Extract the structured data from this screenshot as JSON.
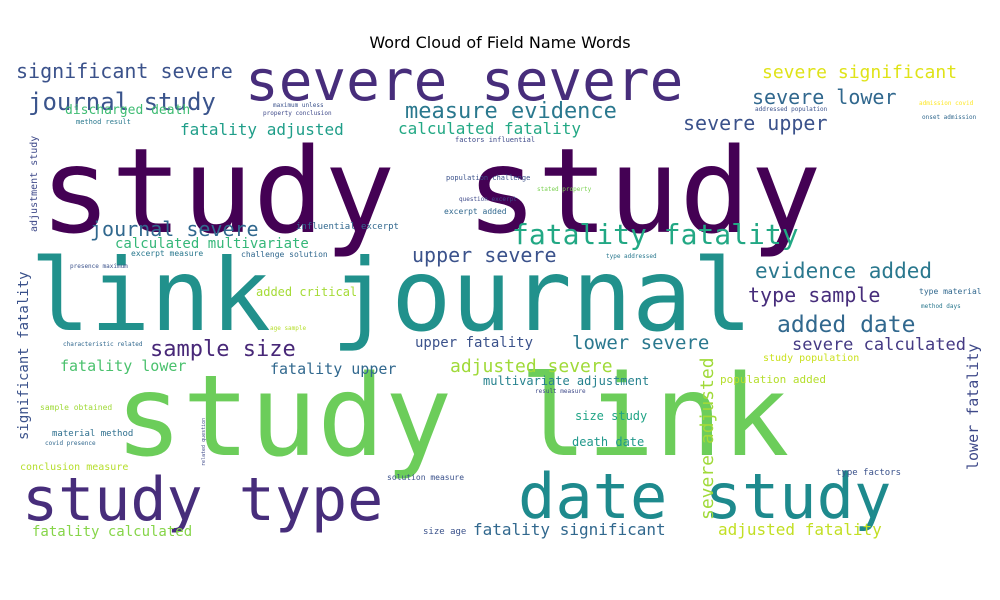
{
  "chart_data": {
    "type": "wordcloud",
    "title": "Word Cloud of Field Name Words",
    "background": "#ffffff",
    "colormap": "viridis",
    "words": [
      {
        "text": "study study",
        "weight": 1.0,
        "color": "#440154"
      },
      {
        "text": "study link",
        "weight": 0.93,
        "color": "#6ccd5a"
      },
      {
        "text": "link journal",
        "weight": 0.86,
        "color": "#21918c"
      },
      {
        "text": "severe severe",
        "weight": 0.55,
        "color": "#472d7b"
      },
      {
        "text": "study type",
        "weight": 0.55,
        "color": "#472d7b"
      },
      {
        "text": "date study",
        "weight": 0.55,
        "color": "#1e8a8d"
      },
      {
        "text": "journal study",
        "weight": 0.3,
        "color": "#3a548c"
      },
      {
        "text": "fatality fatality",
        "weight": 0.32,
        "color": "#22a884"
      },
      {
        "text": "significant severe",
        "weight": 0.25,
        "color": "#3b528b"
      },
      {
        "text": "severe significant",
        "weight": 0.24,
        "color": "#dfe318"
      },
      {
        "text": "measure evidence",
        "weight": 0.26,
        "color": "#2a788e"
      },
      {
        "text": "severe lower",
        "weight": 0.24,
        "color": "#31688e"
      },
      {
        "text": "severe upper",
        "weight": 0.24,
        "color": "#3b528b"
      },
      {
        "text": "journal severe",
        "weight": 0.26,
        "color": "#31688e"
      },
      {
        "text": "evidence added",
        "weight": 0.25,
        "color": "#2a788e"
      },
      {
        "text": "upper severe",
        "weight": 0.23,
        "color": "#3b528b"
      },
      {
        "text": "type sample",
        "weight": 0.24,
        "color": "#472d7b"
      },
      {
        "text": "added date",
        "weight": 0.26,
        "color": "#31688e"
      },
      {
        "text": "sample size",
        "weight": 0.24,
        "color": "#482878"
      },
      {
        "text": "severe calculated",
        "weight": 0.21,
        "color": "#443983"
      },
      {
        "text": "lower severe",
        "weight": 0.22,
        "color": "#2a788e"
      },
      {
        "text": "adjusted severe",
        "weight": 0.2,
        "color": "#a0da39"
      },
      {
        "text": "fatality adjusted",
        "weight": 0.18,
        "color": "#1f9e89"
      },
      {
        "text": "calculated fatality",
        "weight": 0.18,
        "color": "#22a884"
      },
      {
        "text": "calculated multivariate",
        "weight": 0.15,
        "color": "#35b779"
      },
      {
        "text": "discharged death",
        "weight": 0.14,
        "color": "#3fbc73"
      },
      {
        "text": "fatality lower",
        "weight": 0.16,
        "color": "#4ac16d"
      },
      {
        "text": "fatality upper",
        "weight": 0.16,
        "color": "#31688e"
      },
      {
        "text": "upper fatality",
        "weight": 0.15,
        "color": "#3b528b"
      },
      {
        "text": "multivariate adjustment",
        "weight": 0.13,
        "color": "#26828e"
      },
      {
        "text": "population added",
        "weight": 0.13,
        "color": "#b5de2b"
      },
      {
        "text": "study population",
        "weight": 0.12,
        "color": "#cae11f"
      },
      {
        "text": "severe adjusted",
        "weight": 0.2,
        "color": "#a0da39"
      },
      {
        "text": "lower fatality",
        "weight": 0.17,
        "color": "#3e4989"
      },
      {
        "text": "significant fatality",
        "weight": 0.16,
        "color": "#3b528b"
      },
      {
        "text": "adjustment study",
        "weight": 0.12,
        "color": "#3e4989"
      },
      {
        "text": "fatality significant",
        "weight": 0.18,
        "color": "#31688e"
      },
      {
        "text": "adjusted fatality",
        "weight": 0.18,
        "color": "#c2df23"
      },
      {
        "text": "fatality calculated",
        "weight": 0.15,
        "color": "#86d549"
      },
      {
        "text": "added critical",
        "weight": 0.12,
        "color": "#a5db36"
      },
      {
        "text": "size study",
        "weight": 0.12,
        "color": "#20a486"
      },
      {
        "text": "death date",
        "weight": 0.12,
        "color": "#1f988b"
      },
      {
        "text": "type material",
        "weight": 0.08,
        "color": "#31688e"
      },
      {
        "text": "conclusion measure",
        "weight": 0.09,
        "color": "#b5de2b"
      },
      {
        "text": "material method",
        "weight": 0.09,
        "color": "#2e6f8e"
      },
      {
        "text": "sample obtained",
        "weight": 0.08,
        "color": "#a0da39"
      },
      {
        "text": "type factors",
        "weight": 0.08,
        "color": "#3b528b"
      },
      {
        "text": "solution measure",
        "weight": 0.08,
        "color": "#3b528b"
      },
      {
        "text": "size age",
        "weight": 0.08,
        "color": "#3b528b"
      },
      {
        "text": "method result",
        "weight": 0.07,
        "color": "#2a788e"
      },
      {
        "text": "factors influential",
        "weight": 0.07,
        "color": "#3e4989"
      },
      {
        "text": "population challenge",
        "weight": 0.07,
        "color": "#3b528b"
      },
      {
        "text": "influential excerpt",
        "weight": 0.08,
        "color": "#31688e"
      },
      {
        "text": "challenge solution",
        "weight": 0.07,
        "color": "#31688e"
      },
      {
        "text": "excerpt measure",
        "weight": 0.07,
        "color": "#2a788e"
      },
      {
        "text": "excerpt added",
        "weight": 0.07,
        "color": "#31688e"
      },
      {
        "text": "question excerpt",
        "weight": 0.06,
        "color": "#3e4989"
      },
      {
        "text": "stated property",
        "weight": 0.06,
        "color": "#7ad151"
      },
      {
        "text": "property conclusion",
        "weight": 0.06,
        "color": "#3e4989"
      },
      {
        "text": "maximum unless",
        "weight": 0.06,
        "color": "#3b528b"
      },
      {
        "text": "addressed population",
        "weight": 0.06,
        "color": "#3b528b"
      },
      {
        "text": "onset admission",
        "weight": 0.06,
        "color": "#31688e"
      },
      {
        "text": "admission covid",
        "weight": 0.06,
        "color": "#fde725"
      },
      {
        "text": "presence maximum",
        "weight": 0.06,
        "color": "#3b528b"
      },
      {
        "text": "characteristic related",
        "weight": 0.06,
        "color": "#31688e"
      },
      {
        "text": "covid presence",
        "weight": 0.06,
        "color": "#31688e"
      },
      {
        "text": "type addressed",
        "weight": 0.06,
        "color": "#2a788e"
      },
      {
        "text": "age sample",
        "weight": 0.06,
        "color": "#b5de2b"
      },
      {
        "text": "method days",
        "weight": 0.06,
        "color": "#2a788e"
      },
      {
        "text": "result measure",
        "weight": 0.06,
        "color": "#3e4989"
      },
      {
        "text": "related question",
        "weight": 0.05,
        "color": "#3e4989"
      }
    ]
  }
}
